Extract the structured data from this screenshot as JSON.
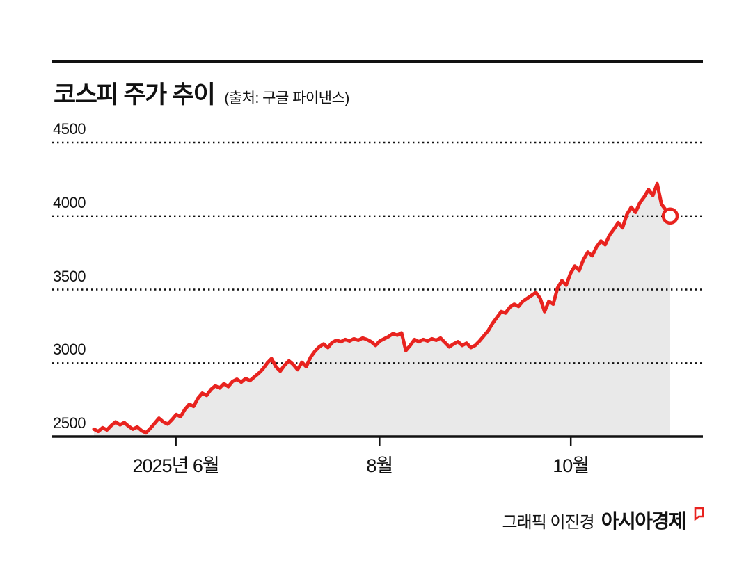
{
  "header": {
    "title": "코스피 주가 추이",
    "source": "(출처: 구글 파이낸스)"
  },
  "footer": {
    "credit": "그래픽 이진경",
    "brand": "아시아경제"
  },
  "chart_data": {
    "type": "area",
    "title": "코스피 주가 추이",
    "source": "(출처: 구글 파이낸스)",
    "series_name": "KOSPI",
    "ylim": [
      2500,
      4500
    ],
    "yticks": [
      2500,
      3000,
      3500,
      4000,
      4500
    ],
    "x_tick_labels": [
      "2025년 6월",
      "8월",
      "10월"
    ],
    "x_tick_positions": [
      0.19,
      0.503,
      0.797
    ],
    "grid": "dotted-horizontal",
    "legend": "none",
    "line_color": "#e8231f",
    "fill_color": "#e9e9e9",
    "axis_color": "#111111",
    "end_marker": {
      "shape": "open-circle",
      "value": 4000
    },
    "values": [
      2550,
      2535,
      2560,
      2545,
      2575,
      2600,
      2580,
      2595,
      2570,
      2550,
      2565,
      2540,
      2525,
      2555,
      2590,
      2625,
      2600,
      2585,
      2615,
      2650,
      2635,
      2685,
      2720,
      2705,
      2760,
      2795,
      2780,
      2820,
      2845,
      2830,
      2860,
      2840,
      2875,
      2890,
      2870,
      2895,
      2880,
      2905,
      2930,
      2960,
      3000,
      3030,
      2975,
      2945,
      2985,
      3015,
      2990,
      2955,
      3005,
      2975,
      3040,
      3080,
      3110,
      3130,
      3105,
      3140,
      3155,
      3145,
      3160,
      3150,
      3165,
      3155,
      3170,
      3160,
      3145,
      3120,
      3150,
      3165,
      3180,
      3200,
      3190,
      3205,
      3085,
      3120,
      3160,
      3145,
      3160,
      3150,
      3165,
      3155,
      3170,
      3140,
      3110,
      3130,
      3145,
      3120,
      3135,
      3105,
      3120,
      3150,
      3185,
      3220,
      3270,
      3310,
      3350,
      3340,
      3380,
      3400,
      3385,
      3420,
      3440,
      3460,
      3480,
      3440,
      3350,
      3420,
      3400,
      3510,
      3560,
      3530,
      3610,
      3660,
      3630,
      3705,
      3755,
      3730,
      3790,
      3830,
      3805,
      3870,
      3910,
      3955,
      3920,
      4010,
      4060,
      4025,
      4090,
      4130,
      4180,
      4140,
      4220,
      4080,
      4040,
      4000
    ]
  }
}
